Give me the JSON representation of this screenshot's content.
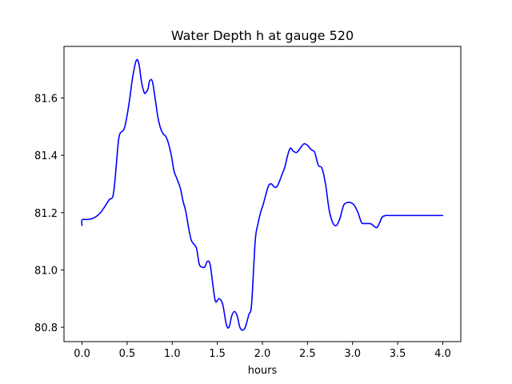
{
  "chart_data": {
    "type": "line",
    "title": "Water Depth h at gauge 520",
    "xlabel": "hours",
    "ylabel": "",
    "xlim": [
      -0.2,
      4.2
    ],
    "ylim": [
      80.75,
      81.78
    ],
    "xticks": [
      0.0,
      0.5,
      1.0,
      1.5,
      2.0,
      2.5,
      3.0,
      3.5,
      4.0
    ],
    "xtick_labels": [
      "0.0",
      "0.5",
      "1.0",
      "1.5",
      "2.0",
      "2.5",
      "3.0",
      "3.5",
      "4.0"
    ],
    "yticks": [
      80.8,
      81.0,
      81.2,
      81.4,
      81.6
    ],
    "ytick_labels": [
      "80.8",
      "81.0",
      "81.2",
      "81.4",
      "81.6"
    ],
    "grid": false,
    "series": [
      {
        "color": "#0000ff",
        "x": [
          0.0,
          0.0,
          0.05,
          0.1,
          0.15,
          0.2,
          0.25,
          0.3,
          0.35,
          0.4,
          0.42,
          0.44,
          0.47,
          0.5,
          0.53,
          0.56,
          0.6,
          0.63,
          0.66,
          0.69,
          0.71,
          0.73,
          0.75,
          0.78,
          0.81,
          0.84,
          0.87,
          0.9,
          0.93,
          0.96,
          0.99,
          1.02,
          1.05,
          1.09,
          1.12,
          1.15,
          1.18,
          1.21,
          1.24,
          1.27,
          1.3,
          1.33,
          1.36,
          1.39,
          1.42,
          1.45,
          1.48,
          1.52,
          1.56,
          1.6,
          1.63,
          1.66,
          1.69,
          1.72,
          1.75,
          1.78,
          1.81,
          1.85,
          1.88,
          1.92,
          1.95,
          1.98,
          2.01,
          2.04,
          2.07,
          2.1,
          2.13,
          2.16,
          2.19,
          2.22,
          2.25,
          2.28,
          2.31,
          2.34,
          2.38,
          2.42,
          2.46,
          2.5,
          2.54,
          2.58,
          2.62,
          2.66,
          2.7,
          2.74,
          2.78,
          2.82,
          2.86,
          2.9,
          2.94,
          2.98,
          3.02,
          3.06,
          3.1,
          3.14,
          3.18,
          3.21,
          3.24,
          3.27,
          3.3,
          3.33,
          3.37,
          3.4,
          3.43,
          3.46,
          3.5,
          3.54,
          3.58,
          3.62,
          3.66,
          3.7,
          3.75,
          3.8,
          3.85,
          3.9,
          3.94,
          3.97,
          4.0
        ],
        "y": [
          81.155,
          81.175,
          81.176,
          81.178,
          81.185,
          81.198,
          81.22,
          81.245,
          81.27,
          81.44,
          81.475,
          81.482,
          81.495,
          81.54,
          81.6,
          81.67,
          81.73,
          81.72,
          81.655,
          81.618,
          81.62,
          81.63,
          81.66,
          81.658,
          81.6,
          81.535,
          81.495,
          81.475,
          81.465,
          81.44,
          81.4,
          81.345,
          81.32,
          81.285,
          81.24,
          81.205,
          81.15,
          81.105,
          81.09,
          81.075,
          81.02,
          81.01,
          81.01,
          81.03,
          81.02,
          80.95,
          80.89,
          80.9,
          80.88,
          80.81,
          80.8,
          80.84,
          80.855,
          80.84,
          80.8,
          80.79,
          80.8,
          80.845,
          80.88,
          81.1,
          81.16,
          81.2,
          81.23,
          81.265,
          81.295,
          81.3,
          81.29,
          81.29,
          81.31,
          81.335,
          81.36,
          81.4,
          81.425,
          81.415,
          81.41,
          81.425,
          81.44,
          81.435,
          81.42,
          81.41,
          81.365,
          81.355,
          81.3,
          81.21,
          81.165,
          81.155,
          81.18,
          81.225,
          81.235,
          81.235,
          81.225,
          81.2,
          81.165,
          81.162,
          81.162,
          81.16,
          81.152,
          81.148,
          81.165,
          81.185,
          81.19,
          81.19,
          81.19,
          81.19,
          81.19,
          81.19,
          81.19,
          81.19,
          81.19,
          81.19,
          81.19,
          81.19,
          81.19,
          81.19,
          81.19,
          81.19,
          81.19
        ]
      }
    ]
  }
}
